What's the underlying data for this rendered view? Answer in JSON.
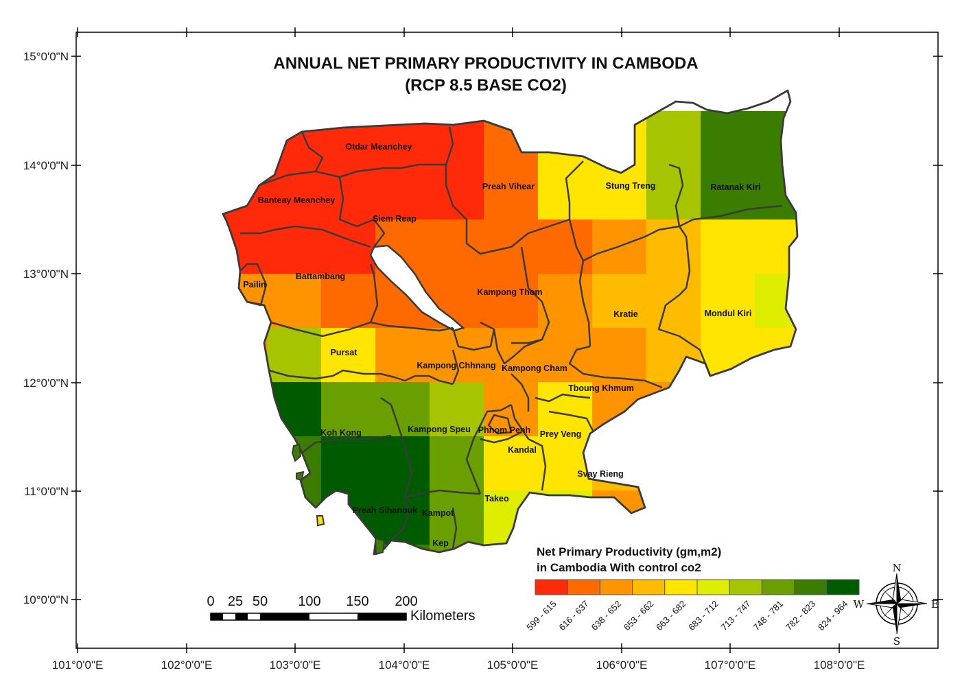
{
  "title": {
    "line1": "ANNUAL NET PRIMARY PRODUCTIVITY  IN CAMBODA",
    "line2": "(RCP 8.5 BASE CO2)"
  },
  "lat_labels": [
    "15°0'0\"N",
    "14°0'0\"N",
    "13°0'0\"N",
    "12°0'0\"N",
    "11°0'0\"N",
    "10°0'0\"N"
  ],
  "lon_labels": [
    "101°0'0\"E",
    "102°0'0\"E",
    "103°0'0\"E",
    "104°0'0\"E",
    "105°0'0\"E",
    "106°0'0\"E",
    "107°0'0\"E",
    "108°0'0\"E"
  ],
  "provinces": [
    {
      "name": "Otdar Meanchey"
    },
    {
      "name": "Banteay Meanchey"
    },
    {
      "name": "Siem Reap"
    },
    {
      "name": "Preah Vihear"
    },
    {
      "name": "Stung Treng"
    },
    {
      "name": "Ratanak Kiri"
    },
    {
      "name": "Pailin"
    },
    {
      "name": "Battambang"
    },
    {
      "name": "Kampong Thom"
    },
    {
      "name": "Kratie"
    },
    {
      "name": "Mondul Kiri"
    },
    {
      "name": "Pursat"
    },
    {
      "name": "Kampong Chhnang"
    },
    {
      "name": "Kampong Cham"
    },
    {
      "name": "Tboung Khmum"
    },
    {
      "name": "Koh Kong"
    },
    {
      "name": "Kampong Speu"
    },
    {
      "name": "Phnom Penh"
    },
    {
      "name": "Prey Veng"
    },
    {
      "name": "Kandal"
    },
    {
      "name": "Svay Rieng"
    },
    {
      "name": "Takeo"
    },
    {
      "name": "Preah Sihanouk"
    },
    {
      "name": "Kampot"
    },
    {
      "name": "Kep"
    }
  ],
  "legend": {
    "title_line1": "Net Primary Productivity (gm,m2)",
    "title_line2": "in Cambodia With control co2",
    "classes": [
      {
        "label": "599 - 615",
        "color": "#ff2a0a"
      },
      {
        "label": "616 - 637",
        "color": "#ff6a00"
      },
      {
        "label": "638 - 652",
        "color": "#ff9400"
      },
      {
        "label": "653 - 662",
        "color": "#ffbb00"
      },
      {
        "label": "663 - 682",
        "color": "#ffe500"
      },
      {
        "label": "683 - 712",
        "color": "#dfed00"
      },
      {
        "label": "713 - 747",
        "color": "#a6c400"
      },
      {
        "label": "748 - 781",
        "color": "#6a9f00"
      },
      {
        "label": "782 - 823",
        "color": "#3a7d00"
      },
      {
        "label": "824 - 964",
        "color": "#005a00"
      }
    ]
  },
  "scale_bar": {
    "ticks": [
      "0",
      "25",
      "50",
      "100",
      "150",
      "200"
    ],
    "unit": "Kilometers"
  },
  "compass": {
    "n": "N",
    "s": "S",
    "e": "E",
    "w": "W"
  }
}
